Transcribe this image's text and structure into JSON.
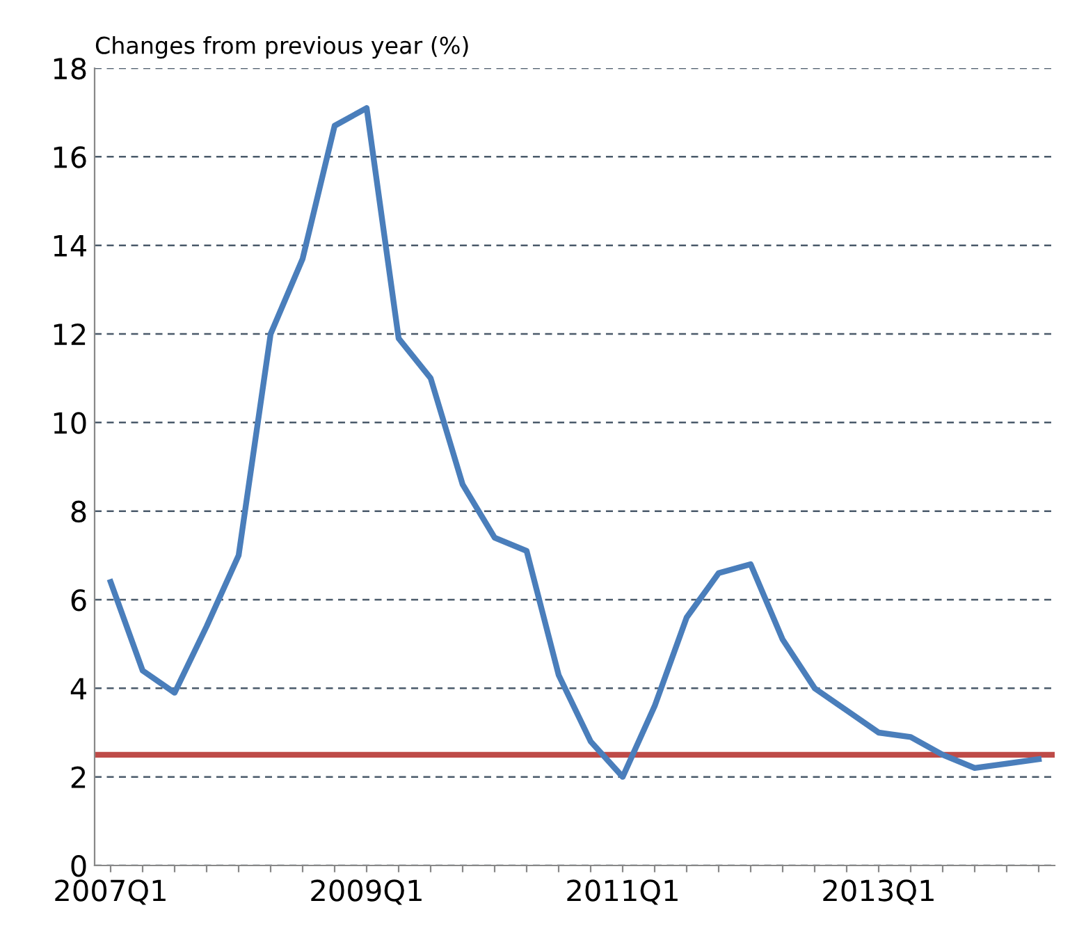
{
  "chart_data": {
    "type": "line",
    "ylabel": "Changes from previous year (%)",
    "categories": [
      "2007Q1",
      null,
      null,
      null,
      null,
      null,
      null,
      null,
      "2009Q1",
      null,
      null,
      null,
      null,
      null,
      null,
      null,
      "2011Q1",
      null,
      null,
      null,
      null,
      null,
      null,
      null,
      "2013Q1",
      null,
      null,
      null,
      null,
      null
    ],
    "series": [
      {
        "color": "#4a7ebb",
        "values": [
          6.4,
          4.4,
          3.9,
          5.4,
          7.0,
          12.0,
          13.7,
          16.7,
          17.1,
          11.9,
          11.0,
          8.6,
          7.4,
          7.1,
          4.3,
          2.8,
          2.0,
          3.6,
          5.6,
          6.6,
          6.8,
          5.1,
          4.0,
          3.5,
          3.0,
          2.9,
          2.5,
          2.2,
          2.3,
          2.4
        ]
      }
    ],
    "ref_lines": [
      {
        "axis": "y",
        "value": 2.5,
        "color": "#be4b48"
      }
    ],
    "ylim": [
      0,
      18
    ],
    "yticks": [
      0,
      2,
      4,
      6,
      8,
      10,
      12,
      14,
      16,
      18
    ],
    "grid": "y",
    "line_style": "solid",
    "marker": "none"
  }
}
